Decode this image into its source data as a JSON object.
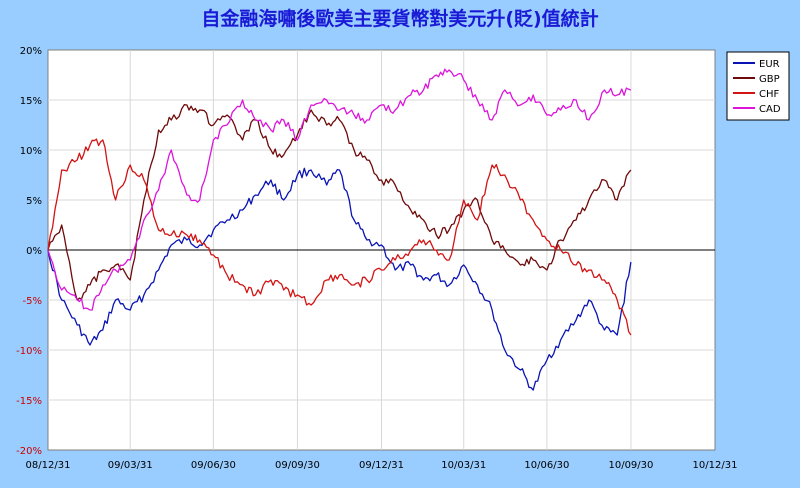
{
  "chart_data": {
    "type": "line",
    "title": "自金融海嘯後歐美主要貨幣對美元升(貶)值統計",
    "xlabel": "",
    "ylabel": "",
    "x_tick_labels": [
      "08/12/31",
      "09/03/31",
      "09/06/30",
      "09/09/30",
      "09/12/31",
      "10/03/31",
      "10/06/30",
      "10/09/30",
      "10/12/31"
    ],
    "x_tick_dates": [
      "2008-12-31",
      "2009-03-31",
      "2009-06-30",
      "2009-09-30",
      "2009-12-31",
      "2010-03-31",
      "2010-06-30",
      "2010-09-30",
      "2010-12-31"
    ],
    "y_tick_labels": [
      "20%",
      "15%",
      "10%",
      "5%",
      "0%",
      "-5%",
      "-10%",
      "-15%",
      "-20%"
    ],
    "y_tick_values": [
      20,
      15,
      10,
      5,
      0,
      -5,
      -10,
      -15,
      -20
    ],
    "xlim": [
      "2008-12-31",
      "2010-12-31"
    ],
    "ylim": [
      -20,
      20
    ],
    "unit": "%",
    "grid": true,
    "legend_position": "right",
    "colors": {
      "background": "#99ccff",
      "plot_background": "#ffffff",
      "title": "#1a1ad6",
      "grid": "#d8d8d8",
      "negative_tick": "#cc0000",
      "positive_tick": "#000000"
    },
    "x": [
      "2008-12-31",
      "2009-01-15",
      "2009-02-01",
      "2009-02-15",
      "2009-03-01",
      "2009-03-15",
      "2009-03-31",
      "2009-04-15",
      "2009-05-01",
      "2009-05-15",
      "2009-06-01",
      "2009-06-15",
      "2009-06-30",
      "2009-07-15",
      "2009-08-01",
      "2009-08-15",
      "2009-09-01",
      "2009-09-15",
      "2009-09-30",
      "2009-10-15",
      "2009-11-01",
      "2009-11-15",
      "2009-12-01",
      "2009-12-15",
      "2009-12-31",
      "2010-01-15",
      "2010-02-01",
      "2010-02-15",
      "2010-03-01",
      "2010-03-15",
      "2010-03-31",
      "2010-04-15",
      "2010-05-01",
      "2010-05-15",
      "2010-06-01",
      "2010-06-15",
      "2010-06-30",
      "2010-07-15",
      "2010-08-01",
      "2010-08-15",
      "2010-09-01",
      "2010-09-15",
      "2010-09-30"
    ],
    "series": [
      {
        "name": "EUR",
        "color": "#0a14b4",
        "values": [
          0,
          -5,
          -7.5,
          -9.5,
          -8,
          -5,
          -6,
          -4.5,
          -2,
          0.5,
          1,
          0.5,
          2,
          3,
          4,
          5.5,
          7,
          5,
          7.5,
          8,
          6.5,
          8,
          3,
          1,
          0.5,
          -2,
          -1.5,
          -3,
          -2.5,
          -3.5,
          -1.5,
          -3.5,
          -6,
          -10,
          -12,
          -14,
          -11,
          -9,
          -7,
          -5,
          -8,
          -8.5,
          -1.2
        ]
      },
      {
        "name": "GBP",
        "color": "#6e0a0a",
        "values": [
          0,
          2.5,
          -5,
          -3.5,
          -2,
          -1.5,
          -3,
          5,
          12,
          13,
          14.5,
          14,
          12.5,
          13.5,
          11,
          13,
          10,
          9.5,
          11.5,
          14,
          12.5,
          13,
          10,
          9,
          7,
          6.5,
          4,
          3,
          1.5,
          2,
          4,
          5,
          1,
          0,
          -1.5,
          -1,
          -2,
          1,
          3,
          5,
          7,
          5,
          8
        ]
      },
      {
        "name": "CHF",
        "color": "#d21414",
        "values": [
          0,
          8,
          9,
          10.5,
          11,
          5,
          8.5,
          7,
          2,
          1.5,
          1.5,
          1,
          -0.5,
          -2.5,
          -3.5,
          -4.5,
          -3,
          -4,
          -4.5,
          -5.5,
          -3,
          -2.5,
          -3.5,
          -3,
          -2,
          -1,
          0,
          1,
          0,
          -1,
          5,
          3,
          8.5,
          7.5,
          5,
          3,
          1,
          0,
          -1.5,
          -2,
          -3,
          -5,
          -8.5
        ]
      },
      {
        "name": "CAD",
        "color": "#dc14dc",
        "values": [
          0,
          -4,
          -5,
          -6,
          -3.5,
          -2,
          -1,
          3,
          6,
          10,
          5.5,
          5,
          11,
          12.5,
          15,
          13,
          12,
          13,
          11,
          14.5,
          15,
          14,
          13.5,
          13,
          14.5,
          14,
          15.5,
          16,
          17.5,
          18,
          17,
          15,
          13,
          16,
          14.5,
          15.5,
          13.5,
          14,
          15,
          13,
          16,
          15.5,
          16
        ]
      }
    ]
  }
}
